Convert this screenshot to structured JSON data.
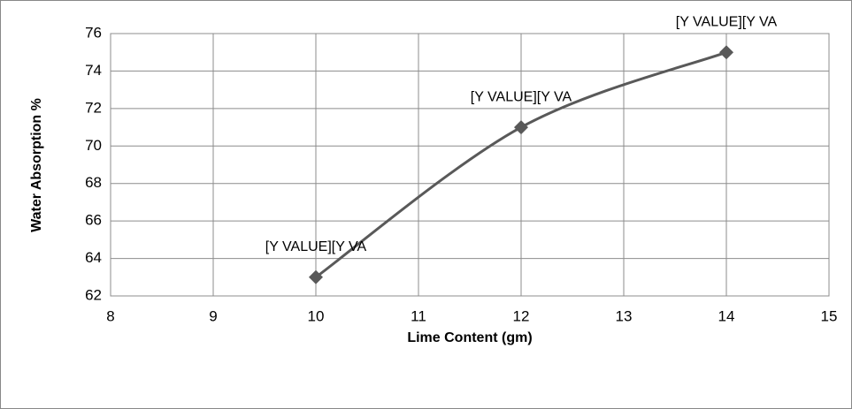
{
  "chart_data": {
    "type": "line",
    "xlabel": "Lime Content (gm)",
    "ylabel": "Water Absorption  %",
    "x": [
      10,
      12,
      14
    ],
    "values": [
      63,
      71,
      75
    ],
    "value_labels": [
      "[Y VALUE][Y VA",
      "[Y VALUE][Y VA",
      "[Y VALUE][Y VA"
    ],
    "color": "#595959",
    "xlim": [
      8,
      15
    ],
    "xticks": [
      8,
      9,
      10,
      11,
      12,
      13,
      14,
      15
    ],
    "ylim": [
      62,
      76
    ],
    "yticks": [
      62,
      64,
      66,
      68,
      70,
      72,
      74,
      76
    ],
    "grid": true,
    "smooth": true
  }
}
